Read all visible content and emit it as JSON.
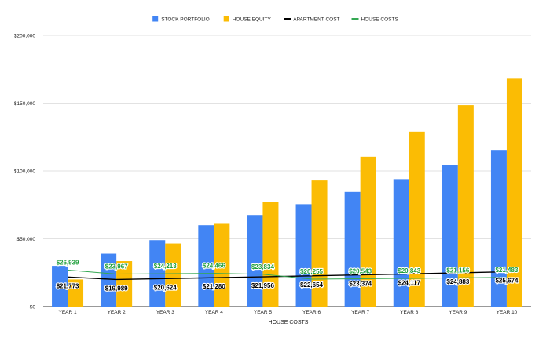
{
  "colors": {
    "stock": "#4285f4",
    "equity": "#fbbc04",
    "apartment": "#000000",
    "house_costs": "#34a853",
    "house_costs_label": "#1e9e3a",
    "grid": "#d9d9d9",
    "axis_text": "#222222",
    "background": "#ffffff"
  },
  "chart_data": {
    "type": "bar",
    "xlabel": "HOUSE COSTS",
    "ylabel": "",
    "ylim": [
      0,
      200000
    ],
    "y_ticks": [
      0,
      50000,
      100000,
      150000,
      200000
    ],
    "y_tick_labels": [
      "$0",
      "$50,000",
      "$100,000",
      "$150,000",
      "$200,000"
    ],
    "grid": true,
    "legend_position": "top-center",
    "categories": [
      "YEAR 1",
      "YEAR 2",
      "YEAR 3",
      "YEAR 4",
      "YEAR 5",
      "YEAR 6",
      "YEAR 7",
      "YEAR 8",
      "YEAR 9",
      "YEAR 10"
    ],
    "series": [
      {
        "name": "STOCK PORTFOLIO",
        "kind": "bar",
        "values": [
          30000,
          39000,
          49000,
          60000,
          67500,
          75500,
          84500,
          94000,
          104500,
          115500
        ]
      },
      {
        "name": "HOUSE EQUITY",
        "kind": "bar",
        "values": [
          20000,
          33500,
          46500,
          61000,
          77000,
          93000,
          110500,
          129000,
          148500,
          168000
        ]
      },
      {
        "name": "APARTMENT COST",
        "kind": "line",
        "values": [
          21773,
          19989,
          20624,
          21280,
          21956,
          22654,
          23374,
          24117,
          24883,
          25674
        ],
        "labels": [
          "$21,773",
          "$19,989",
          "$20,624",
          "$21,280",
          "$21,956",
          "$22,654",
          "$23,374",
          "$24,117",
          "$24,883",
          "$25,674"
        ]
      },
      {
        "name": "HOUSE COSTS",
        "kind": "line",
        "values": [
          26939,
          23967,
          24213,
          24466,
          23834,
          20255,
          20543,
          20843,
          21156,
          21483
        ],
        "labels": [
          "$26,939",
          "$23,967",
          "$24,213",
          "$24,466",
          "$23,834",
          "$20,255",
          "$20,543",
          "$20,843",
          "$21,156",
          "$21,483"
        ]
      }
    ]
  }
}
